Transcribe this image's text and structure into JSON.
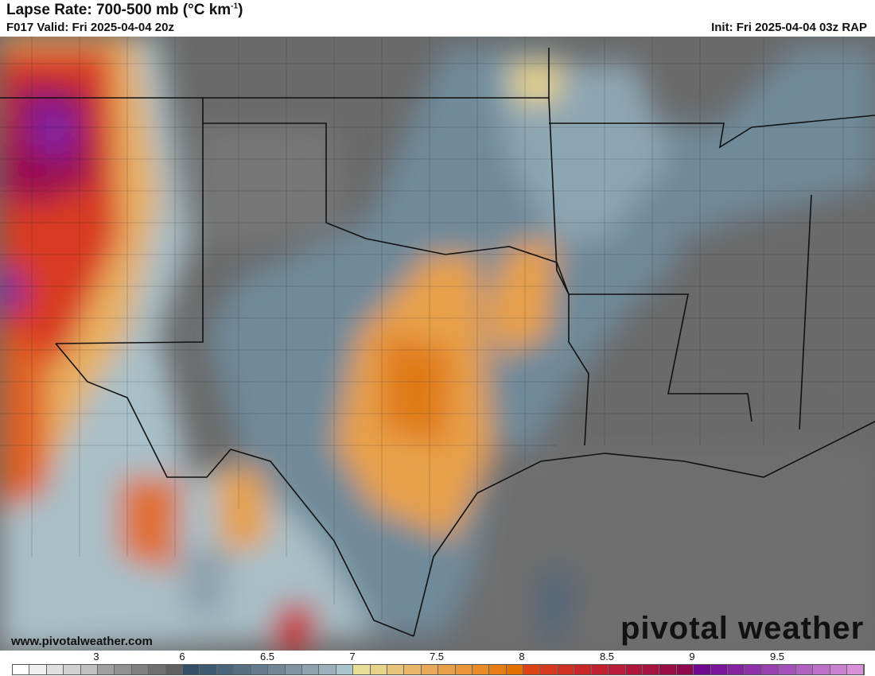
{
  "header": {
    "title": "Lapse Rate: 700-500 mb (°C km",
    "title_sup": "-1",
    "title_close": ")",
    "valid": "F017 Valid: Fri 2025-04-04 20z",
    "init": "Init: Fri 2025-04-04 03z RAP"
  },
  "footer": {
    "site": "www.pivotalweather.com",
    "logo": "pivotal weather"
  },
  "colorbar": {
    "ticks": [
      "3",
      "6",
      "6.5",
      "7",
      "7.5",
      "8",
      "8.5",
      "9",
      "9.5"
    ],
    "colors": [
      "#ffffff",
      "#efefef",
      "#dfdfdf",
      "#d0d0d0",
      "#c0c0c0",
      "#a0a0a0",
      "#909090",
      "#808080",
      "#707070",
      "#606060",
      "#334f66",
      "#3e5a70",
      "#4a657a",
      "#566f83",
      "#63798d",
      "#718697",
      "#7f93a2",
      "#8da1ae",
      "#9bb0ba",
      "#aac5cb",
      "#e8de96",
      "#e8d288",
      "#e8c47a",
      "#e8b76a",
      "#e8aa5a",
      "#e8a048",
      "#e89638",
      "#e88a28",
      "#e67e18",
      "#e07000",
      "#dc4418",
      "#d63a1e",
      "#cf3024",
      "#c8282a",
      "#c02030",
      "#b81c36",
      "#ae163c",
      "#a41240",
      "#9a0e46",
      "#8c0a4c",
      "#700890",
      "#7a1498",
      "#8422a0",
      "#8e30a8",
      "#9840b0",
      "#a450b8",
      "#b060c0",
      "#bc70c8",
      "#c880d0",
      "#d890d8"
    ]
  }
}
